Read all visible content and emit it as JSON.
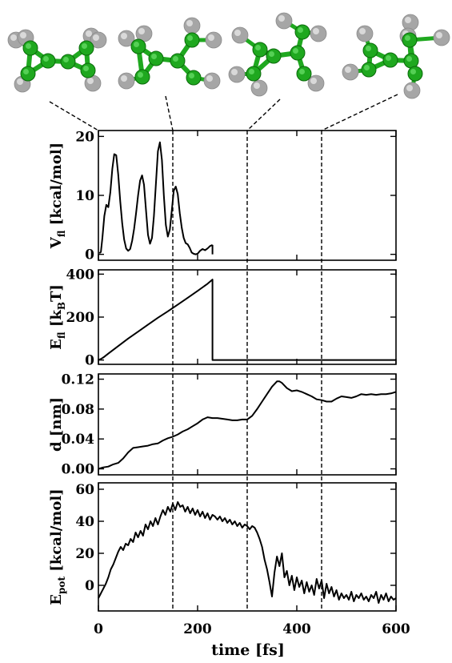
{
  "figure": {
    "colors": {
      "axis": "#000000",
      "atom_c": "#1fa81f",
      "atom_c_dark": "#0b6a0b",
      "atom_h": "#a6a6a6",
      "bond": "#1fa81f"
    },
    "structures": [
      {
        "name": "structure-1",
        "time": 0
      },
      {
        "name": "structure-2",
        "time": 150
      },
      {
        "name": "structure-3",
        "time": 300
      },
      {
        "name": "structure-4",
        "time": 450
      }
    ],
    "vlines": [
      150,
      300,
      450
    ]
  },
  "chart_data": [
    {
      "type": "line",
      "name": "vfl-panel",
      "ylabel": "V_fl [kcal/mol]",
      "ylabel_main": "V",
      "ylabel_sub": "fl",
      "ylabel_rest": " [kcal/mol]",
      "xlim": [
        0,
        600
      ],
      "ylim": [
        -1,
        21
      ],
      "yticks": [
        0,
        10,
        20
      ],
      "xticks": [
        0,
        200,
        400,
        600
      ],
      "x": [
        2,
        5,
        8,
        12,
        16,
        20,
        24,
        28,
        32,
        36,
        40,
        44,
        48,
        52,
        56,
        60,
        64,
        68,
        72,
        76,
        80,
        84,
        88,
        92,
        96,
        100,
        104,
        108,
        112,
        116,
        120,
        124,
        128,
        132,
        136,
        140,
        144,
        148,
        152,
        156,
        160,
        164,
        168,
        172,
        176,
        180,
        184,
        188,
        192,
        196,
        200,
        205,
        210,
        215,
        220,
        225,
        230
      ],
      "y": [
        0.2,
        0.4,
        2.8,
        6.5,
        8.4,
        8.0,
        10.5,
        14.5,
        17.0,
        16.8,
        13.5,
        9.0,
        5.2,
        2.5,
        1.0,
        0.6,
        0.9,
        2.3,
        4.3,
        7.0,
        10.0,
        12.5,
        13.4,
        11.8,
        7.5,
        3.3,
        1.8,
        2.8,
        6.5,
        12.0,
        17.5,
        19.0,
        16.0,
        10.0,
        5.0,
        3.0,
        4.2,
        7.5,
        10.8,
        11.5,
        10.2,
        7.0,
        4.5,
        2.8,
        1.9,
        1.7,
        1.1,
        0.3,
        0.1,
        0.0,
        0.1,
        0.6,
        0.9,
        0.7,
        1.0,
        1.4,
        1.6
      ],
      "tail_line": [
        [
          230,
          1.6
        ],
        [
          230,
          0.0
        ]
      ]
    },
    {
      "type": "line",
      "name": "efl-panel",
      "ylabel": "E_fl [k_BT]",
      "ylabel_main": "E",
      "ylabel_sub": "fl",
      "ylabel_rest": " [k",
      "ylabel_sub2": "B",
      "ylabel_tail": "T]",
      "xlim": [
        0,
        600
      ],
      "ylim": [
        -20,
        420
      ],
      "yticks": [
        0,
        200,
        400
      ],
      "xticks": [
        0,
        200,
        400,
        600
      ],
      "x": [
        0,
        5,
        10,
        20,
        40,
        60,
        80,
        100,
        120,
        140,
        160,
        180,
        200,
        220,
        230,
        230,
        600
      ],
      "y": [
        0,
        5,
        12,
        30,
        65,
        100,
        132,
        165,
        197,
        227,
        258,
        290,
        322,
        355,
        375,
        0,
        0
      ]
    },
    {
      "type": "line",
      "name": "d-panel",
      "ylabel": "d [nm]",
      "xlim": [
        0,
        600
      ],
      "ylim": [
        -0.008,
        0.127
      ],
      "yticks": [
        0.0,
        0.04,
        0.08,
        0.12
      ],
      "ytick_labels": [
        "0.00",
        "0.04",
        "0.08",
        "0.12"
      ],
      "xticks": [
        0,
        200,
        400,
        600
      ],
      "x": [
        0,
        10,
        20,
        30,
        40,
        50,
        60,
        70,
        80,
        90,
        100,
        110,
        120,
        130,
        140,
        150,
        160,
        170,
        180,
        190,
        200,
        210,
        220,
        230,
        240,
        250,
        260,
        270,
        280,
        290,
        300,
        310,
        320,
        330,
        340,
        350,
        360,
        365,
        370,
        380,
        390,
        400,
        410,
        420,
        430,
        440,
        450,
        460,
        470,
        480,
        490,
        500,
        510,
        520,
        530,
        540,
        550,
        560,
        570,
        580,
        590,
        600
      ],
      "y": [
        0.0,
        0.002,
        0.003,
        0.006,
        0.008,
        0.014,
        0.022,
        0.028,
        0.029,
        0.03,
        0.031,
        0.033,
        0.034,
        0.038,
        0.041,
        0.043,
        0.046,
        0.05,
        0.053,
        0.057,
        0.061,
        0.066,
        0.069,
        0.068,
        0.068,
        0.067,
        0.066,
        0.065,
        0.065,
        0.066,
        0.066,
        0.071,
        0.08,
        0.09,
        0.1,
        0.11,
        0.117,
        0.117,
        0.115,
        0.108,
        0.104,
        0.105,
        0.103,
        0.1,
        0.097,
        0.093,
        0.092,
        0.09,
        0.09,
        0.094,
        0.097,
        0.096,
        0.095,
        0.097,
        0.1,
        0.099,
        0.1,
        0.099,
        0.1,
        0.1,
        0.101,
        0.103
      ]
    },
    {
      "type": "line",
      "name": "epot-panel",
      "ylabel": "E_pot [kcal/mol]",
      "ylabel_main": "E",
      "ylabel_sub": "pot",
      "ylabel_rest": " [kcal/mol]",
      "xlabel": "time [fs]",
      "xlim": [
        0,
        600
      ],
      "ylim": [
        -16,
        64
      ],
      "yticks": [
        0,
        20,
        40,
        60
      ],
      "xticks": [
        0,
        200,
        400,
        600
      ],
      "x": [
        0,
        5,
        10,
        15,
        20,
        25,
        30,
        35,
        40,
        45,
        50,
        55,
        60,
        65,
        70,
        75,
        80,
        85,
        90,
        95,
        100,
        105,
        110,
        115,
        120,
        125,
        130,
        135,
        140,
        145,
        150,
        155,
        160,
        165,
        170,
        175,
        180,
        185,
        190,
        195,
        200,
        205,
        210,
        215,
        220,
        225,
        230,
        235,
        240,
        245,
        250,
        255,
        260,
        265,
        270,
        275,
        280,
        285,
        290,
        295,
        300,
        305,
        310,
        315,
        320,
        325,
        330,
        335,
        340,
        345,
        350,
        355,
        360,
        365,
        370,
        375,
        380,
        385,
        390,
        395,
        400,
        405,
        410,
        415,
        420,
        425,
        430,
        435,
        440,
        445,
        450,
        455,
        460,
        465,
        470,
        475,
        480,
        485,
        490,
        495,
        500,
        505,
        510,
        515,
        520,
        525,
        530,
        535,
        540,
        545,
        550,
        555,
        560,
        565,
        570,
        575,
        580,
        585,
        590,
        595,
        600
      ],
      "y": [
        -8,
        -5,
        -2,
        1,
        5,
        10,
        13,
        17,
        21,
        24,
        22,
        26,
        25,
        29,
        27,
        33,
        30,
        34,
        31,
        38,
        35,
        40,
        37,
        42,
        38,
        43,
        47,
        44,
        49,
        46,
        51,
        47,
        52,
        49,
        50,
        46,
        49,
        45,
        48,
        44,
        47,
        43,
        46,
        42,
        45,
        41,
        44,
        43,
        41,
        43,
        40,
        42,
        39,
        41,
        38,
        40,
        37,
        39,
        36,
        38,
        37,
        35,
        37,
        36,
        33,
        29,
        24,
        16,
        10,
        2,
        -7,
        8,
        18,
        12,
        20,
        5,
        9,
        0,
        6,
        -3,
        5,
        -1,
        3,
        -5,
        2,
        -4,
        0,
        -6,
        4,
        -2,
        3,
        -8,
        1,
        -5,
        -1,
        -7,
        -3,
        -9,
        -5,
        -8,
        -6,
        -9,
        -4,
        -10,
        -6,
        -8,
        -5,
        -9,
        -7,
        -10,
        -6,
        -8,
        -4,
        -11,
        -6,
        -9,
        -5,
        -10,
        -7,
        -9,
        -8
      ]
    }
  ]
}
